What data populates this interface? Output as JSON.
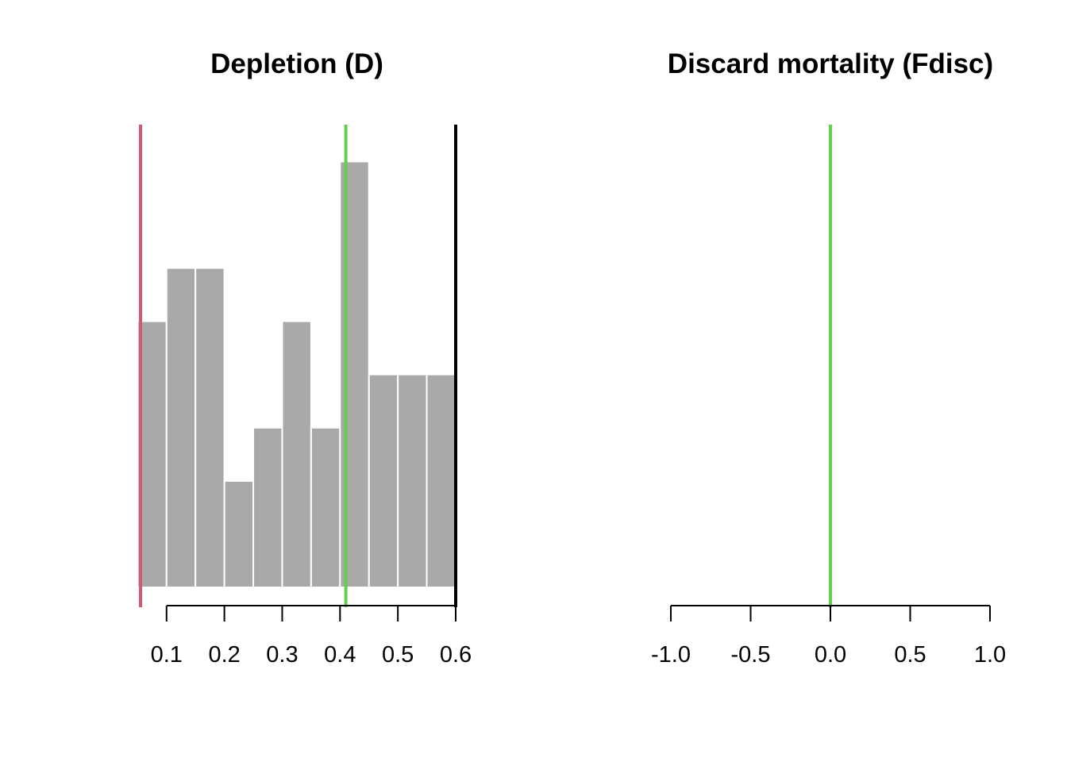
{
  "chart_data": [
    {
      "type": "bar",
      "title": "Depletion (D)",
      "xlabel": "",
      "ylabel": "",
      "x_ticks": [
        "0.1",
        "0.2",
        "0.3",
        "0.4",
        "0.5",
        "0.6"
      ],
      "x_tick_values": [
        0.1,
        0.2,
        0.3,
        0.4,
        0.5,
        0.6
      ],
      "xlim": [
        0.055,
        0.6
      ],
      "ylim": [
        0,
        8.35
      ],
      "bin_edges": [
        0.05,
        0.1,
        0.15,
        0.2,
        0.25,
        0.3,
        0.35,
        0.4,
        0.45,
        0.5,
        0.55,
        0.6
      ],
      "values": [
        5,
        6,
        6,
        2,
        3,
        5,
        3,
        8,
        4,
        4,
        4
      ],
      "bar_color": "#A9A9A9",
      "reference_lines": [
        {
          "x": 0.055,
          "color": "#D05A6E"
        },
        {
          "x": 0.41,
          "color": "#61D04F"
        },
        {
          "x": 0.6,
          "color": "#000000"
        }
      ]
    },
    {
      "type": "bar",
      "title": "Discard mortality (Fdisc)",
      "xlabel": "",
      "ylabel": "",
      "x_ticks": [
        "-1.0",
        "-0.5",
        "0.0",
        "0.5",
        "1.0"
      ],
      "x_tick_values": [
        -1.0,
        -0.5,
        0.0,
        0.5,
        1.0
      ],
      "xlim": [
        -1.0,
        1.0
      ],
      "values": [],
      "reference_lines": [
        {
          "x": 0.0,
          "color": "#61D04F"
        }
      ]
    }
  ]
}
